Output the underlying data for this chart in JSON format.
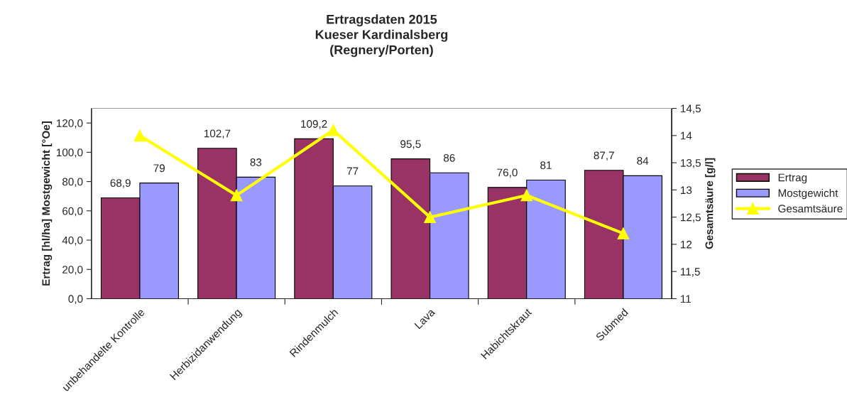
{
  "chart_data": {
    "type": "bar",
    "title": "Ertragsdaten 2015\nKueser Kardinalsberg\n(Regnery/Porten)",
    "ylabel": "Ertrag [hl/ha] Mostgewicht [°Oe]",
    "y2label": "Gesamtsäure [g/l]",
    "categories": [
      "unbehandelte Kontrolle",
      "Herbizidanwendung",
      "Rindenmulch",
      "Lava",
      "Habichtskraut",
      "Submed"
    ],
    "series": [
      {
        "name": "Ertrag",
        "color": "#993366",
        "values": [
          68.9,
          102.7,
          109.2,
          95.5,
          76.0,
          87.7
        ],
        "value_labels": [
          "68,9",
          "102,7",
          "109,2",
          "95,5",
          "76,0",
          "87,7"
        ]
      },
      {
        "name": "Mostgewicht",
        "color": "#9999ff",
        "values": [
          79,
          83,
          77,
          86,
          81,
          84
        ],
        "value_labels": [
          "79",
          "83",
          "77",
          "86",
          "81",
          "84"
        ]
      },
      {
        "name": "Gesamtsäure",
        "type": "line",
        "axis": "y2",
        "color": "#ffff00",
        "marker": "triangle",
        "values": [
          14.0,
          12.9,
          14.1,
          12.5,
          12.9,
          12.2
        ]
      }
    ],
    "ylim": [
      0,
      130
    ],
    "yticks": [
      {
        "value": 0,
        "label": "0,0"
      },
      {
        "value": 20,
        "label": "20,0"
      },
      {
        "value": 40,
        "label": "40,0"
      },
      {
        "value": 60,
        "label": "60,0"
      },
      {
        "value": 80,
        "label": "80,0"
      },
      {
        "value": 100,
        "label": "100,0"
      },
      {
        "value": 120,
        "label": "120,0"
      }
    ],
    "y2lim": [
      11,
      14.5
    ],
    "y2ticks": [
      11,
      {
        "value": 11.5,
        "label": "11,5"
      },
      12,
      {
        "value": 12.5,
        "label": "12,5"
      },
      13,
      {
        "value": 13.5,
        "label": "13,5"
      },
      14,
      {
        "value": 14.5,
        "label": "14,5"
      }
    ],
    "grid": false,
    "legend": "right"
  }
}
